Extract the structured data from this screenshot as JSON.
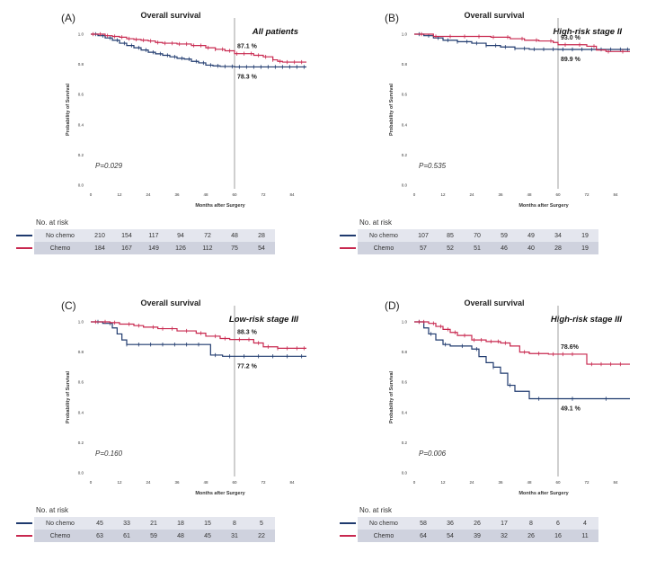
{
  "colors": {
    "no_chemo": "#1f3a6e",
    "chemo": "#c8284f"
  },
  "risk_title": "No. at risk",
  "group_labels": [
    "No chemo",
    "Chemo"
  ],
  "chart_data": [
    {
      "type": "line",
      "panel_label": "(A)",
      "title": "Overall survival",
      "subtitle": "All patients",
      "xlabel": "Months after Surgery",
      "ylabel": "Probability of Survival",
      "xlim": [
        0,
        90
      ],
      "ylim": [
        0,
        1.0
      ],
      "xticks": [
        0,
        12,
        24,
        36,
        48,
        60,
        72,
        84
      ],
      "yticks": [
        "0.0",
        "0.2",
        "0.4",
        "0.6",
        "0.8",
        "1.0"
      ],
      "reference_x": 60,
      "p_value": "P=0.029",
      "annotations": [
        "87.1 %",
        "78.3 %"
      ],
      "series": [
        {
          "name": "No chemo",
          "x": [
            0,
            3,
            6,
            9,
            12,
            15,
            18,
            21,
            24,
            27,
            30,
            33,
            36,
            39,
            42,
            45,
            48,
            51,
            54,
            60,
            66,
            72,
            78,
            84,
            90
          ],
          "y": [
            1.0,
            0.99,
            0.975,
            0.96,
            0.94,
            0.925,
            0.91,
            0.895,
            0.88,
            0.87,
            0.86,
            0.85,
            0.84,
            0.835,
            0.82,
            0.81,
            0.795,
            0.79,
            0.786,
            0.783,
            0.783,
            0.783,
            0.783,
            0.783,
            0.783
          ],
          "censor_x": [
            2,
            5,
            8,
            11,
            14,
            17,
            20,
            23,
            26,
            29,
            32,
            35,
            38,
            41,
            44,
            47,
            50,
            53,
            56,
            59,
            62,
            65,
            68,
            71,
            74,
            77,
            80,
            83,
            86,
            89
          ]
        },
        {
          "name": "Chemo",
          "x": [
            0,
            3,
            6,
            9,
            12,
            15,
            18,
            21,
            24,
            27,
            30,
            36,
            42,
            48,
            52,
            56,
            60,
            64,
            68,
            72,
            76,
            78,
            80,
            84,
            90
          ],
          "y": [
            1.0,
            1.0,
            0.99,
            0.985,
            0.98,
            0.97,
            0.965,
            0.96,
            0.955,
            0.945,
            0.94,
            0.935,
            0.925,
            0.91,
            0.9,
            0.89,
            0.871,
            0.871,
            0.86,
            0.85,
            0.83,
            0.82,
            0.815,
            0.815,
            0.815
          ],
          "censor_x": [
            1,
            4,
            7,
            10,
            13,
            16,
            19,
            22,
            25,
            28,
            31,
            34,
            37,
            40,
            43,
            46,
            49,
            52,
            55,
            58,
            61,
            64,
            67,
            70,
            73,
            76,
            79,
            82,
            85,
            88
          ]
        }
      ],
      "risk": {
        "No chemo": [
          210,
          154,
          117,
          94,
          72,
          48,
          28
        ],
        "Chemo": [
          184,
          167,
          149,
          126,
          112,
          75,
          54
        ]
      }
    },
    {
      "type": "line",
      "panel_label": "(B)",
      "title": "Overall survival",
      "subtitle": "High-risk stage II",
      "xlabel": "Months after Surgery",
      "ylabel": "Probability of Survival",
      "xlim": [
        0,
        90
      ],
      "ylim": [
        0,
        1.0
      ],
      "xticks": [
        0,
        12,
        24,
        36,
        48,
        60,
        72,
        84
      ],
      "yticks": [
        "0.0",
        "0.2",
        "0.4",
        "0.6",
        "0.8",
        "1.0"
      ],
      "reference_x": 60,
      "p_value": "P=0.535",
      "annotations": [
        "93.0 %",
        "89.9 %"
      ],
      "series": [
        {
          "name": "No chemo",
          "x": [
            0,
            4,
            8,
            12,
            18,
            24,
            30,
            36,
            42,
            48,
            54,
            60,
            66,
            72,
            78,
            84,
            90
          ],
          "y": [
            1.0,
            0.99,
            0.975,
            0.96,
            0.95,
            0.94,
            0.925,
            0.915,
            0.905,
            0.9,
            0.9,
            0.899,
            0.899,
            0.899,
            0.899,
            0.899,
            0.899
          ],
          "censor_x": [
            2,
            6,
            10,
            14,
            18,
            22,
            26,
            30,
            34,
            38,
            42,
            46,
            50,
            54,
            58,
            62,
            66,
            70,
            74,
            78,
            82,
            86,
            89
          ]
        },
        {
          "name": "Chemo",
          "x": [
            0,
            8,
            16,
            24,
            32,
            40,
            46,
            52,
            58,
            60,
            66,
            72,
            76,
            80,
            84,
            90
          ],
          "y": [
            1.0,
            0.985,
            0.985,
            0.985,
            0.98,
            0.97,
            0.96,
            0.955,
            0.945,
            0.93,
            0.93,
            0.92,
            0.895,
            0.885,
            0.885,
            0.885
          ],
          "censor_x": [
            3,
            9,
            15,
            21,
            27,
            33,
            39,
            45,
            51,
            57,
            63,
            69,
            75,
            81,
            87
          ]
        }
      ],
      "risk": {
        "No chemo": [
          107,
          85,
          70,
          59,
          49,
          34,
          19
        ],
        "Chemo": [
          57,
          52,
          51,
          46,
          40,
          28,
          19
        ]
      }
    },
    {
      "type": "line",
      "panel_label": "(C)",
      "title": "Overall survival",
      "subtitle": "Low-risk stage III",
      "xlabel": "Months after Surgery",
      "ylabel": "Probability of Survival",
      "xlim": [
        0,
        90
      ],
      "ylim": [
        0,
        1.0
      ],
      "xticks": [
        0,
        12,
        24,
        36,
        48,
        60,
        72,
        84
      ],
      "yticks": [
        "0.0",
        "0.2",
        "0.4",
        "0.6",
        "0.8",
        "1.0"
      ],
      "reference_x": 60,
      "p_value": "P=0.160",
      "annotations": [
        "88.3 %",
        "77.2 %"
      ],
      "series": [
        {
          "name": "No chemo",
          "x": [
            0,
            5,
            9,
            11,
            13,
            15,
            18,
            24,
            36,
            48,
            50,
            55,
            60,
            66,
            72,
            84,
            90
          ],
          "y": [
            1.0,
            0.99,
            0.96,
            0.92,
            0.88,
            0.85,
            0.85,
            0.85,
            0.85,
            0.85,
            0.78,
            0.772,
            0.772,
            0.772,
            0.772,
            0.772,
            0.772
          ],
          "censor_x": [
            3,
            8,
            15,
            20,
            25,
            30,
            35,
            40,
            45,
            52,
            58,
            64,
            70,
            76,
            82,
            88
          ]
        },
        {
          "name": "Chemo",
          "x": [
            0,
            8,
            12,
            18,
            22,
            28,
            36,
            44,
            48,
            54,
            58,
            62,
            68,
            72,
            78,
            84,
            90
          ],
          "y": [
            1.0,
            0.995,
            0.985,
            0.975,
            0.965,
            0.955,
            0.94,
            0.925,
            0.905,
            0.89,
            0.883,
            0.883,
            0.86,
            0.835,
            0.825,
            0.825,
            0.825
          ],
          "censor_x": [
            2,
            6,
            10,
            16,
            20,
            26,
            30,
            34,
            40,
            46,
            52,
            56,
            62,
            66,
            70,
            74,
            78,
            82,
            86,
            89
          ]
        }
      ],
      "risk": {
        "No chemo": [
          45,
          33,
          21,
          18,
          15,
          8,
          5
        ],
        "Chemo": [
          63,
          61,
          59,
          48,
          45,
          31,
          22
        ]
      }
    },
    {
      "type": "line",
      "panel_label": "(D)",
      "title": "Overall survival",
      "subtitle": "High-risk stage III",
      "xlabel": "Months after Surgery",
      "ylabel": "Probability of Survival",
      "xlim": [
        0,
        90
      ],
      "ylim": [
        0,
        1.0
      ],
      "xticks": [
        0,
        12,
        24,
        36,
        48,
        60,
        72,
        84
      ],
      "yticks": [
        "0.0",
        "0.2",
        "0.4",
        "0.6",
        "0.8",
        "1.0"
      ],
      "reference_x": 60,
      "p_value": "P=0.006",
      "annotations": [
        "78.6%",
        "49.1 %"
      ],
      "series": [
        {
          "name": "No chemo",
          "x": [
            0,
            4,
            6,
            9,
            12,
            15,
            18,
            24,
            27,
            30,
            33,
            36,
            39,
            42,
            48,
            60,
            72,
            84,
            90
          ],
          "y": [
            1.0,
            0.96,
            0.92,
            0.88,
            0.85,
            0.84,
            0.84,
            0.82,
            0.77,
            0.73,
            0.7,
            0.66,
            0.58,
            0.54,
            0.491,
            0.491,
            0.491,
            0.491,
            0.491
          ],
          "censor_x": [
            2,
            7,
            13,
            20,
            26,
            33,
            40,
            52,
            66,
            80
          ]
        },
        {
          "name": "Chemo",
          "x": [
            0,
            6,
            9,
            12,
            15,
            18,
            24,
            30,
            36,
            40,
            44,
            48,
            56,
            60,
            66,
            70,
            72,
            76,
            84,
            90
          ],
          "y": [
            1.0,
            0.99,
            0.97,
            0.95,
            0.93,
            0.91,
            0.88,
            0.87,
            0.86,
            0.84,
            0.8,
            0.79,
            0.786,
            0.786,
            0.786,
            0.786,
            0.72,
            0.72,
            0.72,
            0.72
          ],
          "censor_x": [
            2,
            4,
            8,
            11,
            14,
            17,
            21,
            25,
            28,
            32,
            35,
            38,
            46,
            52,
            58,
            62,
            66,
            74,
            78,
            82,
            86
          ]
        }
      ],
      "risk": {
        "No chemo": [
          58,
          36,
          26,
          17,
          8,
          6,
          4
        ],
        "Chemo": [
          64,
          54,
          39,
          32,
          26,
          16,
          11
        ]
      }
    }
  ]
}
